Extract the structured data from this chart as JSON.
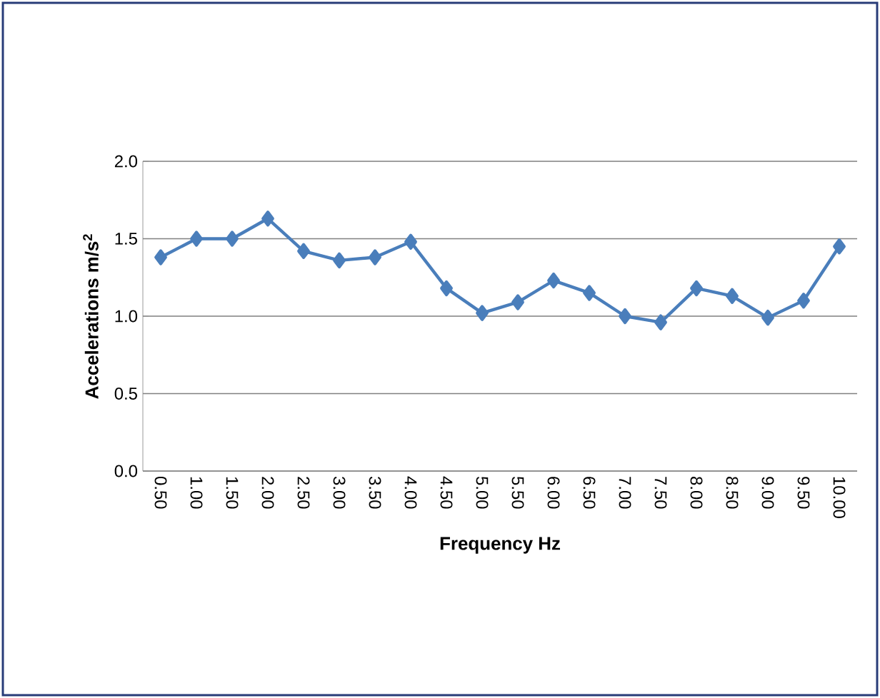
{
  "chart_data": {
    "type": "line",
    "xlabel": "Frequency Hz",
    "ylabel": "Accelerations m/s$^{2}$",
    "categories": [
      "0.50",
      "1.00",
      "1.50",
      "2.00",
      "2.50",
      "3.00",
      "3.50",
      "4.00",
      "4.50",
      "5.00",
      "5.50",
      "6.00",
      "6.50",
      "7.00",
      "7.50",
      "8.00",
      "8.50",
      "9.00",
      "9.50",
      "10.00"
    ],
    "series": [
      {
        "color": "#4a7ebb",
        "values": [
          1.38,
          1.5,
          1.5,
          1.63,
          1.42,
          1.36,
          1.38,
          1.48,
          1.18,
          1.02,
          1.09,
          1.23,
          1.15,
          1.0,
          0.96,
          1.18,
          1.13,
          0.99,
          1.1,
          1.45
        ]
      }
    ],
    "ylim": [
      0,
      2
    ],
    "yticks": [
      {
        "value": 0,
        "label": "0.0"
      },
      {
        "value": 0.5,
        "label": "0.5"
      },
      {
        "value": 1,
        "label": "1.0"
      },
      {
        "value": 1.5,
        "label": "1.5"
      },
      {
        "value": 2,
        "label": "2.0"
      }
    ],
    "grid": "y",
    "marker": "diamond",
    "line_style": "solid"
  }
}
